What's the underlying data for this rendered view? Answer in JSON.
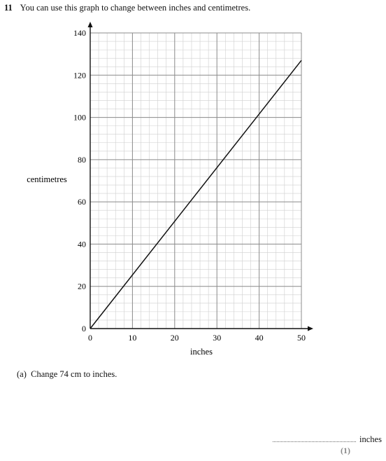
{
  "question": {
    "number": "11",
    "text": "You can use this graph to change between inches and centimetres."
  },
  "chart_data": {
    "type": "line",
    "xlabel": "inches",
    "ylabel": "centimetres",
    "xlim": [
      0,
      50
    ],
    "ylim": [
      0,
      140
    ],
    "x_ticks": [
      0,
      10,
      20,
      30,
      40,
      50
    ],
    "y_ticks": [
      0,
      20,
      40,
      60,
      80,
      100,
      120,
      140
    ],
    "grid": true,
    "minor_grid_step_x": 2,
    "minor_grid_step_y": 4,
    "series": [
      {
        "x": [
          0,
          50
        ],
        "values": [
          0,
          127
        ]
      }
    ],
    "colors": {
      "line": "#111111",
      "major_grid": "#8c8c8c",
      "minor_grid": "#cfcfcf",
      "axis": "#111111"
    }
  },
  "part_a": {
    "label": "(a)",
    "text": "Change 74 cm to inches."
  },
  "answer": {
    "unit": "inches",
    "marks": "(1)"
  }
}
